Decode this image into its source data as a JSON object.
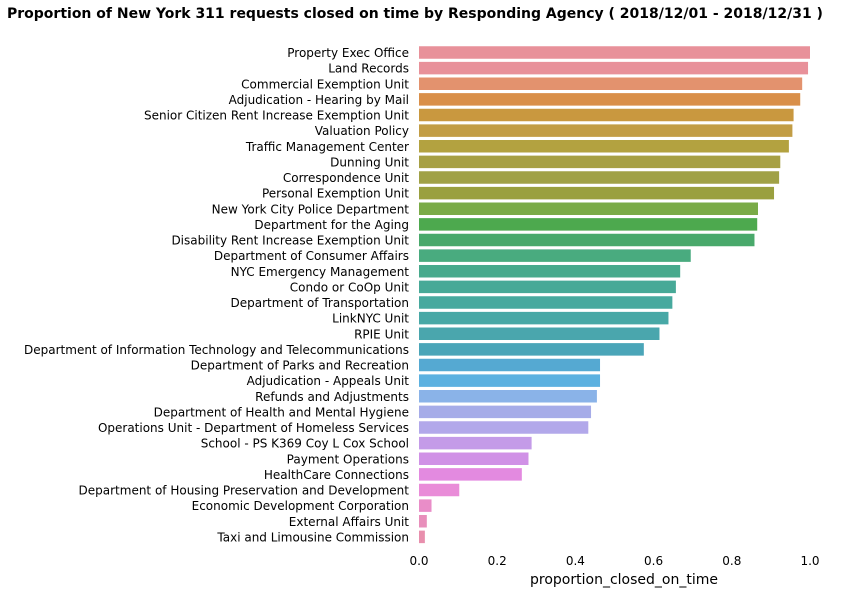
{
  "chart_data": {
    "type": "bar",
    "orientation": "horizontal",
    "title": "Proportion of New York 311 requests closed on time by Responding Agency  ( 2018/12/01 - 2018/12/31 )",
    "xlabel": "proportion_closed_on_time",
    "ylabel": "",
    "xlim": [
      0,
      1.0
    ],
    "xticks": [
      "0.0",
      "0.2",
      "0.4",
      "0.6",
      "0.8",
      "1.0"
    ],
    "grid": false,
    "categories": [
      "Property Exec Office",
      "Land Records",
      "Commercial Exemption Unit",
      "Adjudication - Hearing by Mail",
      "Senior Citizen Rent Increase Exemption Unit",
      "Valuation Policy",
      "Traffic Management Center",
      "Dunning Unit",
      "Correspondence Unit",
      "Personal Exemption Unit",
      "New York City Police Department",
      "Department for the Aging",
      "Disability Rent Increase Exemption Unit",
      "Department of Consumer Affairs",
      "NYC Emergency Management",
      "Condo or CoOp Unit",
      "Department of Transportation",
      "LinkNYC Unit",
      "RPIE Unit",
      "Department of Information Technology and Telecommunications",
      "Department of Parks and Recreation",
      "Adjudication - Appeals Unit",
      "Refunds and Adjustments",
      "Department of Health and Mental Hygiene",
      "Operations Unit - Department of Homeless Services",
      "School - PS K369 Coy L Cox School",
      "Payment Operations",
      "HealthCare Connections",
      "Department of Housing Preservation and Development",
      "Economic Development Corporation",
      "External Affairs Unit",
      "Taxi and Limousine Commission"
    ],
    "values": [
      1.0,
      0.995,
      0.98,
      0.975,
      0.958,
      0.955,
      0.946,
      0.924,
      0.921,
      0.908,
      0.867,
      0.865,
      0.858,
      0.695,
      0.668,
      0.657,
      0.648,
      0.638,
      0.615,
      0.575,
      0.463,
      0.463,
      0.455,
      0.44,
      0.433,
      0.288,
      0.28,
      0.263,
      0.103,
      0.032,
      0.02,
      0.015
    ],
    "colors": [
      "#e8919a",
      "#e8919a",
      "#e3926e",
      "#d98f49",
      "#c9983f",
      "#c29d45",
      "#b3a240",
      "#a7a044",
      "#a0a146",
      "#9aa03f",
      "#7aab47",
      "#4da94e",
      "#49a96b",
      "#49ab7f",
      "#48aa8d",
      "#47a997",
      "#47a99e",
      "#48a8a6",
      "#4aa6ad",
      "#4aa5b8",
      "#55a9d2",
      "#5cb1e0",
      "#8ab3e8",
      "#a6ace8",
      "#b2a8ea",
      "#c49be8",
      "#d091e6",
      "#e38ae0",
      "#e98cd8",
      "#e98dc8",
      "#e88fbb",
      "#e88fad"
    ]
  }
}
